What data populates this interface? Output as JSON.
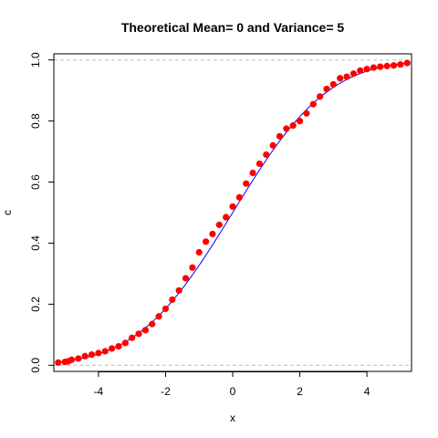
{
  "chart_data": {
    "type": "scatter",
    "title": "Theoretical Mean= 0 and Variance= 5",
    "xlabel": "x",
    "ylabel": "c",
    "xlim": [
      -5.33,
      5.33
    ],
    "ylim": [
      -0.02,
      1.02
    ],
    "x_ticks": [
      -4,
      -2,
      0,
      2,
      4
    ],
    "x_tick_labels": [
      "-4",
      "-2",
      "0",
      "2",
      "4"
    ],
    "y_ticks": [
      0.0,
      0.2,
      0.4,
      0.6,
      0.8,
      1.0
    ],
    "y_tick_labels": [
      "0.0",
      "0.2",
      "0.4",
      "0.6",
      "0.8",
      "1.0"
    ],
    "reference_lines_y": [
      0,
      1
    ],
    "grid": false,
    "legend": "none",
    "colors": {
      "points": "#ff0000",
      "theoretical_curve": "#0000ff",
      "reference_lines": "#bebebe"
    },
    "series": [
      {
        "name": "",
        "style": "line",
        "color": "#0000ff",
        "distribution": "normal",
        "mean": 0,
        "variance": 5,
        "x_range": [
          -5.2,
          5.3
        ]
      },
      {
        "name": "",
        "style": "points",
        "color": "#ff0000",
        "x": [
          -5.2,
          -5.0,
          -4.9,
          -4.8,
          -4.6,
          -4.4,
          -4.2,
          -4.0,
          -3.8,
          -3.6,
          -3.4,
          -3.2,
          -3.0,
          -2.8,
          -2.6,
          -2.4,
          -2.2,
          -2.0,
          -1.8,
          -1.6,
          -1.4,
          -1.2,
          -1.0,
          -0.8,
          -0.6,
          -0.4,
          -0.2,
          0.0,
          0.2,
          0.4,
          0.6,
          0.8,
          1.0,
          1.2,
          1.4,
          1.6,
          1.8,
          2.0,
          2.2,
          2.4,
          2.6,
          2.8,
          3.0,
          3.2,
          3.4,
          3.6,
          3.8,
          4.0,
          4.2,
          4.4,
          4.6,
          4.8,
          5.0,
          5.2
        ],
        "y": [
          0.009,
          0.011,
          0.013,
          0.018,
          0.022,
          0.03,
          0.035,
          0.04,
          0.046,
          0.055,
          0.062,
          0.073,
          0.09,
          0.103,
          0.115,
          0.135,
          0.16,
          0.185,
          0.215,
          0.245,
          0.285,
          0.32,
          0.37,
          0.405,
          0.43,
          0.46,
          0.485,
          0.52,
          0.55,
          0.595,
          0.63,
          0.66,
          0.69,
          0.72,
          0.75,
          0.775,
          0.785,
          0.8,
          0.825,
          0.855,
          0.88,
          0.905,
          0.92,
          0.94,
          0.945,
          0.955,
          0.965,
          0.97,
          0.975,
          0.978,
          0.98,
          0.982,
          0.985,
          0.99
        ]
      }
    ]
  }
}
